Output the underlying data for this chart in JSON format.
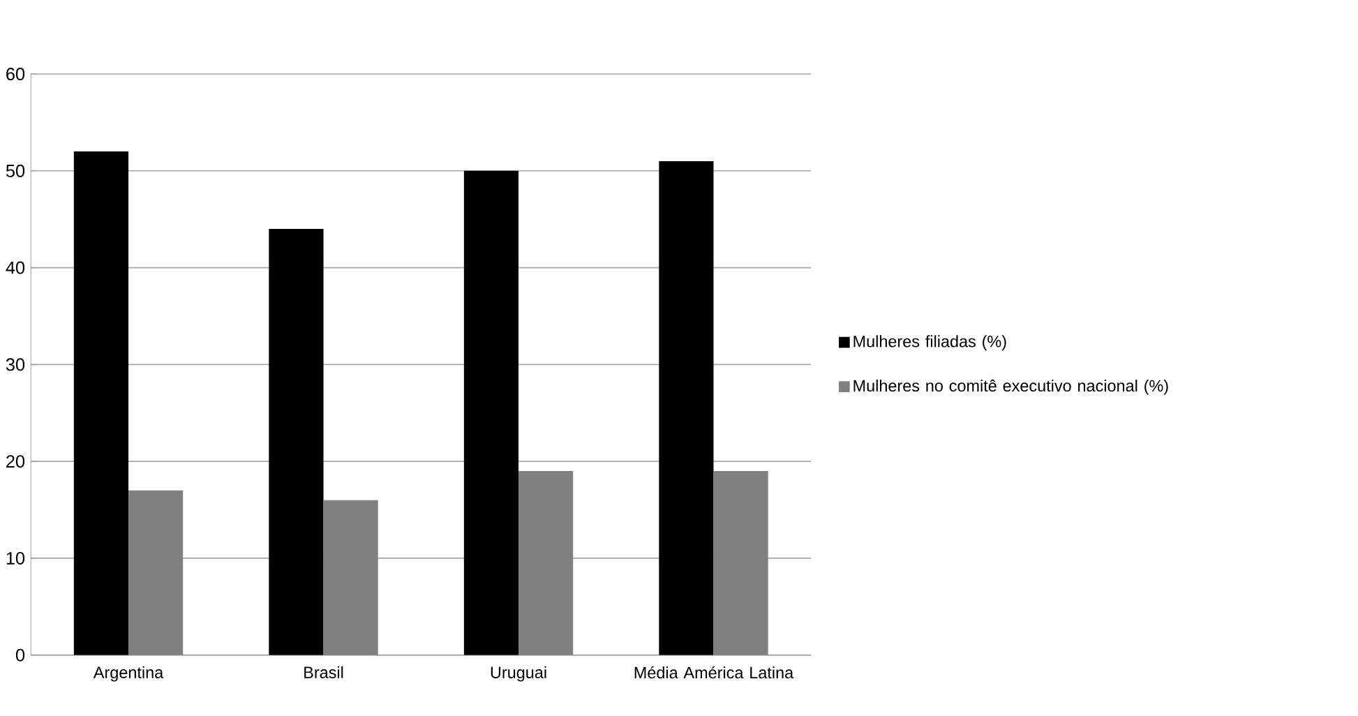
{
  "chart_data": {
    "type": "bar",
    "categories": [
      "Argentina",
      "Brasil",
      "Uruguai",
      "Média América Latina"
    ],
    "series": [
      {
        "name": "Mulheres filiadas (%)",
        "color": "#000000",
        "values": [
          52,
          44,
          50,
          51
        ]
      },
      {
        "name": "Mulheres no comitê executivo nacional (%)",
        "color": "#808080",
        "values": [
          17,
          16,
          19,
          19
        ]
      }
    ],
    "ylim": [
      0,
      60
    ],
    "yticks": [
      0,
      10,
      20,
      30,
      40,
      50,
      60
    ],
    "grid": "y",
    "legend": "right"
  }
}
